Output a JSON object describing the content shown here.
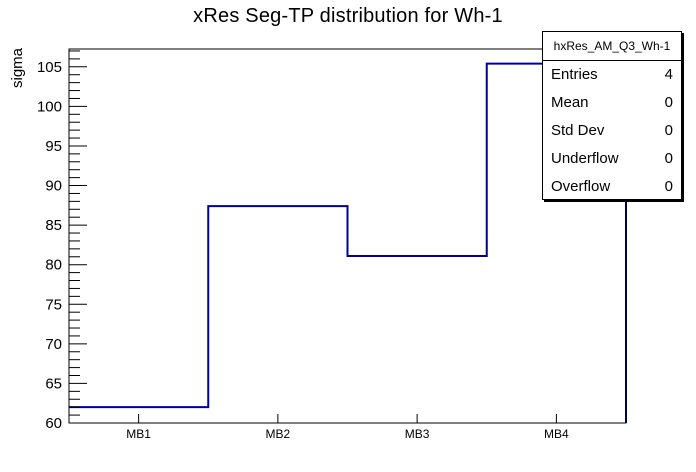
{
  "title": "xRes Seg-TP distribution for Wh-1",
  "chart_data": {
    "type": "bar",
    "style": "step-histogram",
    "title": "xRes Seg-TP distribution for Wh-1",
    "categories": [
      "MB1",
      "MB2",
      "MB3",
      "MB4"
    ],
    "values": [
      62,
      87.4,
      81.1,
      105.4
    ],
    "xlabel": "",
    "ylabel": "sigma",
    "ylim": [
      60,
      107.25
    ],
    "ytick_major_step": 5,
    "ytick_minor_step": 1,
    "yticks": [
      60,
      65,
      70,
      75,
      80,
      85,
      90,
      95,
      100,
      105
    ],
    "grid": false,
    "legend_position": "none",
    "line_color": "#000099",
    "frame_color": "#000000"
  },
  "stats_box": {
    "header": "hxRes_AM_Q3_Wh-1",
    "rows": [
      {
        "label": "Entries",
        "value": "4"
      },
      {
        "label": "Mean",
        "value": "0"
      },
      {
        "label": "Std Dev",
        "value": "0"
      },
      {
        "label": "Underflow",
        "value": "0"
      },
      {
        "label": "Overflow",
        "value": "0"
      }
    ]
  }
}
